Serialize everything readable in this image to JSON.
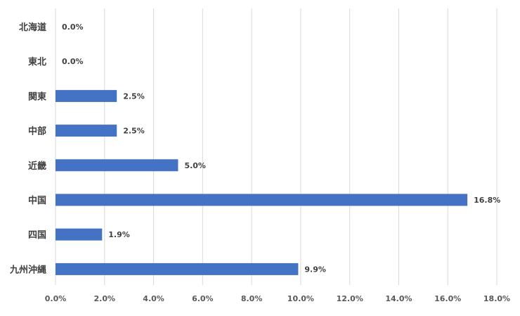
{
  "chart_data": {
    "type": "bar",
    "orientation": "horizontal",
    "title": "",
    "xlabel": "",
    "ylabel": "",
    "categories": [
      "北海道",
      "東北",
      "関東",
      "中部",
      "近畿",
      "中国",
      "四国",
      "九州沖縄"
    ],
    "values": [
      0.0,
      0.0,
      2.5,
      2.5,
      5.0,
      16.8,
      1.9,
      9.9
    ],
    "value_labels": [
      "0.0%",
      "0.0%",
      "2.5%",
      "2.5%",
      "5.0%",
      "16.8%",
      "1.9%",
      "9.9%"
    ],
    "xlim": [
      0,
      18
    ],
    "x_ticks": [
      0,
      2,
      4,
      6,
      8,
      10,
      12,
      14,
      16,
      18
    ],
    "x_tick_labels": [
      "0.0%",
      "2.0%",
      "4.0%",
      "6.0%",
      "8.0%",
      "10.0%",
      "12.0%",
      "14.0%",
      "16.0%",
      "18.0%"
    ],
    "grid": "vertical",
    "legend": "none",
    "bar_color": "#4472C4",
    "grid_color": "#D9D9D9"
  }
}
